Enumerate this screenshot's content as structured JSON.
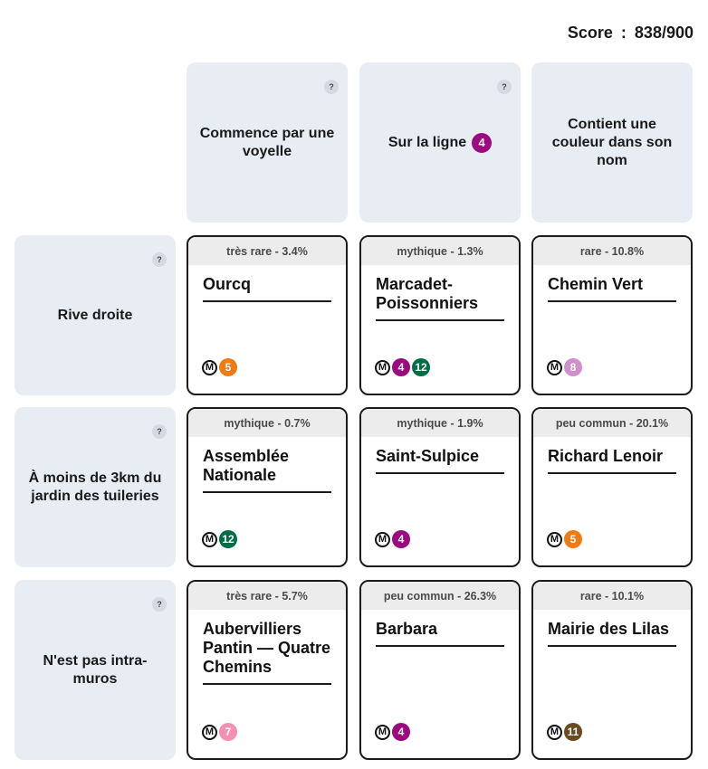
{
  "score": {
    "label": "Score",
    "sep": ":",
    "value": "838/900"
  },
  "columns": [
    {
      "label": "Commence par une voyelle",
      "help": "?"
    },
    {
      "label": "Sur la ligne",
      "line": "4",
      "line_color": "#9b0b7f",
      "help": "?"
    },
    {
      "label": "Contient une couleur dans son nom"
    }
  ],
  "rows": [
    {
      "label": "Rive droite",
      "help": "?"
    },
    {
      "label": "À moins de 3km du jardin des tuileries",
      "help": "?"
    },
    {
      "label": "N'est pas intra-muros",
      "help": "?"
    }
  ],
  "metro_symbol": "M",
  "cells": [
    {
      "rarity": "très rare - 3.4%",
      "name": "Ourcq",
      "lines": [
        {
          "n": "5",
          "color": "#f07a13"
        }
      ]
    },
    {
      "rarity": "mythique - 1.3%",
      "name": "Marcadet-Poissonniers",
      "lines": [
        {
          "n": "4",
          "color": "#9b0b7f"
        },
        {
          "n": "12",
          "color": "#006e44"
        }
      ]
    },
    {
      "rarity": "rare - 10.8%",
      "name": "Chemin Vert",
      "lines": [
        {
          "n": "8",
          "color": "#cf8fc8"
        }
      ]
    },
    {
      "rarity": "mythique - 0.7%",
      "name": "Assemblée Nationale",
      "lines": [
        {
          "n": "12",
          "color": "#006e44"
        }
      ]
    },
    {
      "rarity": "mythique - 1.9%",
      "name": "Saint-Sulpice",
      "lines": [
        {
          "n": "4",
          "color": "#9b0b7f"
        }
      ]
    },
    {
      "rarity": "peu commun - 20.1%",
      "name": "Richard Lenoir",
      "lines": [
        {
          "n": "5",
          "color": "#f07a13"
        }
      ]
    },
    {
      "rarity": "très rare - 5.7%",
      "name": "Aubervilliers Pantin — Quatre Chemins",
      "lines": [
        {
          "n": "7",
          "color": "#f48fb4"
        }
      ]
    },
    {
      "rarity": "peu commun - 26.3%",
      "name": "Barbara",
      "lines": [
        {
          "n": "4",
          "color": "#9b0b7f"
        }
      ]
    },
    {
      "rarity": "rare - 10.1%",
      "name": "Mairie des Lilas",
      "lines": [
        {
          "n": "11",
          "color": "#6b4a20"
        }
      ]
    }
  ]
}
